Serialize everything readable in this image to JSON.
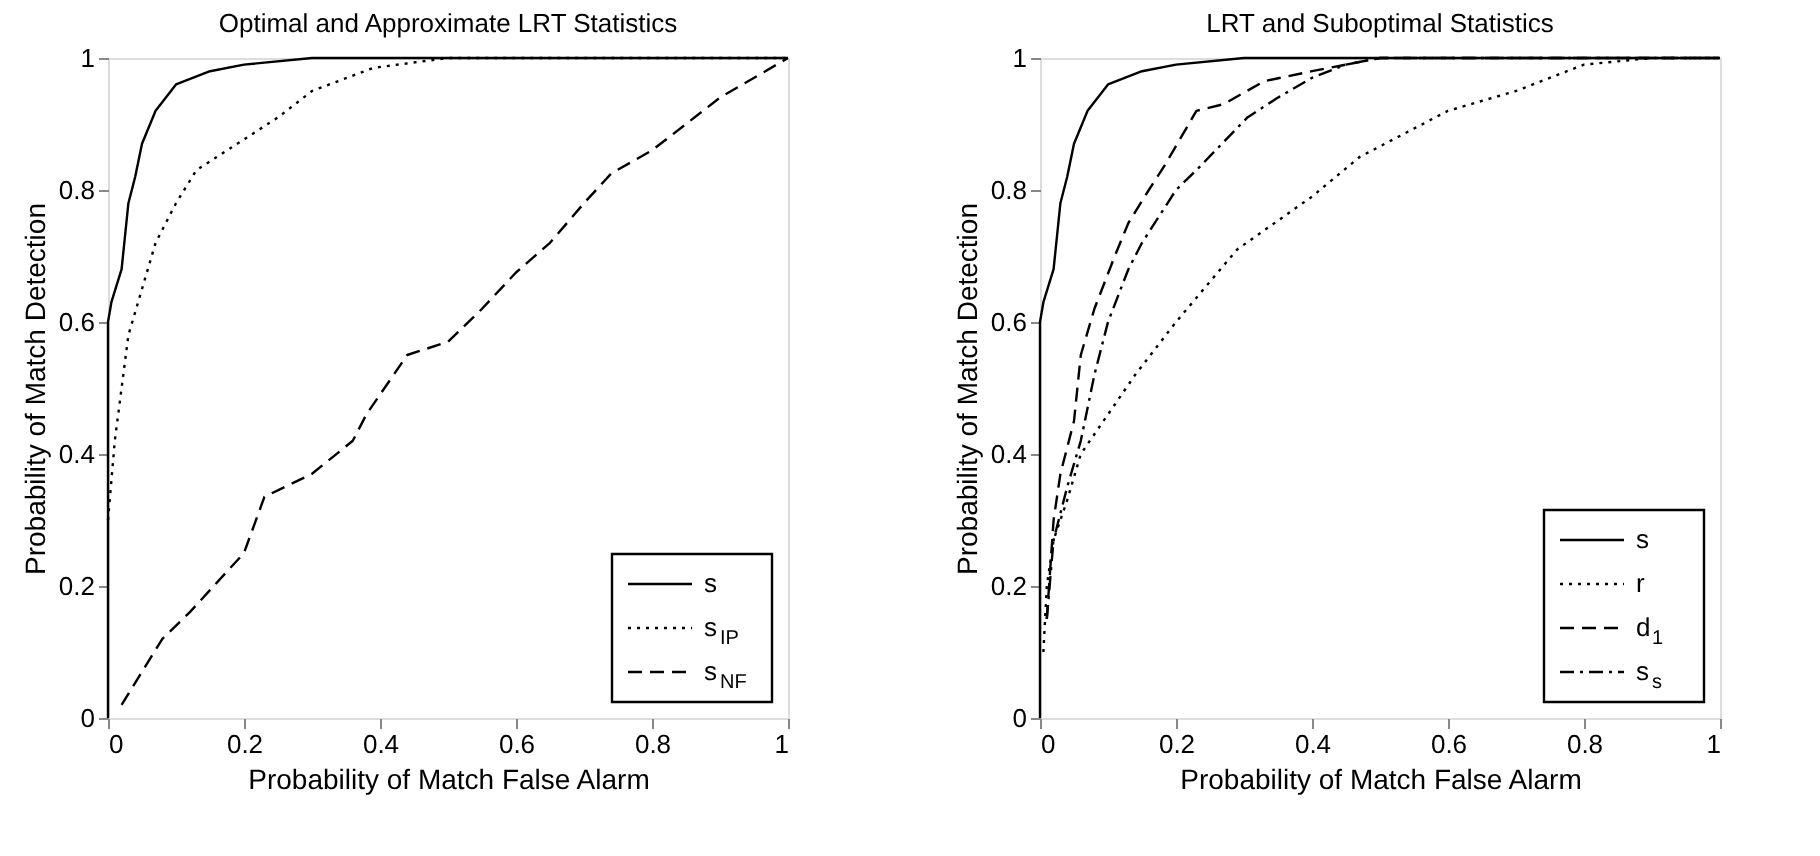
{
  "chart_data": [
    {
      "type": "line",
      "title": "Optimal and Approximate LRT Statistics",
      "xlabel": "Probability of Match False Alarm",
      "ylabel": "Probability of Match Detection",
      "xlim": [
        0,
        1
      ],
      "ylim": [
        0,
        1
      ],
      "xticks": [
        0,
        0.2,
        0.4,
        0.6,
        0.8,
        1
      ],
      "yticks": [
        0,
        0.2,
        0.4,
        0.6,
        0.8,
        1
      ],
      "grid": false,
      "legend": "bottom right",
      "marker": "none",
      "series": [
        {
          "name": "s",
          "color": "#000000",
          "line_style": "solid",
          "x": [
            0,
            0,
            0.005,
            0.02,
            0.03,
            0.04,
            0.05,
            0.07,
            0.1,
            0.15,
            0.2,
            0.3,
            1
          ],
          "values": [
            0,
            0.6,
            0.63,
            0.68,
            0.78,
            0.82,
            0.87,
            0.92,
            0.96,
            0.98,
            0.99,
            1,
            1
          ]
        },
        {
          "name": "s$_{IP}$",
          "color": "#000000",
          "line_style": "dotted",
          "x": [
            0,
            0.01,
            0.02,
            0.03,
            0.05,
            0.07,
            0.1,
            0.13,
            0.19,
            0.25,
            0.3,
            0.39,
            0.5,
            1
          ],
          "values": [
            0.3,
            0.42,
            0.5,
            0.58,
            0.65,
            0.72,
            0.78,
            0.83,
            0.87,
            0.91,
            0.95,
            0.985,
            1,
            1
          ]
        },
        {
          "name": "s$_{NF}$",
          "color": "#000000",
          "line_style": "dashed",
          "x": [
            0.02,
            0.05,
            0.08,
            0.12,
            0.2,
            0.23,
            0.3,
            0.36,
            0.38,
            0.44,
            0.5,
            0.55,
            0.6,
            0.65,
            0.7,
            0.74,
            0.8,
            0.85,
            0.9,
            1
          ],
          "values": [
            0.02,
            0.07,
            0.12,
            0.16,
            0.25,
            0.335,
            0.37,
            0.42,
            0.46,
            0.55,
            0.57,
            0.62,
            0.675,
            0.72,
            0.78,
            0.825,
            0.86,
            0.9,
            0.94,
            1
          ]
        }
      ]
    },
    {
      "type": "line",
      "title": "LRT and Suboptimal Statistics",
      "xlabel": "Probability of Match False Alarm",
      "ylabel": "Probability of Match Detection",
      "xlim": [
        0,
        1
      ],
      "ylim": [
        0,
        1
      ],
      "xticks": [
        0,
        0.2,
        0.4,
        0.6,
        0.8,
        1
      ],
      "yticks": [
        0,
        0.2,
        0.4,
        0.6,
        0.8,
        1
      ],
      "grid": false,
      "legend": "bottom right",
      "marker": "none",
      "series": [
        {
          "name": "s",
          "color": "#000000",
          "line_style": "solid",
          "x": [
            0,
            0,
            0.005,
            0.02,
            0.03,
            0.04,
            0.05,
            0.07,
            0.1,
            0.15,
            0.2,
            0.3,
            1
          ],
          "values": [
            0,
            0.6,
            0.63,
            0.68,
            0.78,
            0.82,
            0.87,
            0.92,
            0.96,
            0.98,
            0.99,
            1,
            1
          ]
        },
        {
          "name": "r",
          "color": "#000000",
          "line_style": "dotted",
          "x": [
            0.005,
            0.01,
            0.02,
            0.04,
            0.06,
            0.1,
            0.14,
            0.2,
            0.29,
            0.4,
            0.47,
            0.6,
            0.7,
            0.8,
            0.9,
            1
          ],
          "values": [
            0.1,
            0.2,
            0.27,
            0.33,
            0.4,
            0.46,
            0.52,
            0.6,
            0.71,
            0.79,
            0.85,
            0.92,
            0.95,
            0.99,
            1,
            1
          ]
        },
        {
          "name": "d$_{1}$",
          "color": "#000000",
          "line_style": "dashed",
          "x": [
            0.01,
            0.02,
            0.03,
            0.05,
            0.06,
            0.08,
            0.11,
            0.13,
            0.16,
            0.185,
            0.23,
            0.27,
            0.33,
            0.4,
            0.45,
            0.5,
            1
          ],
          "values": [
            0.15,
            0.3,
            0.37,
            0.45,
            0.55,
            0.62,
            0.7,
            0.75,
            0.8,
            0.84,
            0.92,
            0.93,
            0.965,
            0.98,
            0.99,
            1,
            1
          ]
        },
        {
          "name": "s$_{s}$",
          "color": "#000000",
          "line_style": "dashdot",
          "x": [
            0.01,
            0.02,
            0.04,
            0.06,
            0.08,
            0.1,
            0.13,
            0.15,
            0.2,
            0.23,
            0.305,
            0.35,
            0.4,
            0.45,
            0.5,
            1
          ],
          "values": [
            0.15,
            0.27,
            0.35,
            0.42,
            0.52,
            0.6,
            0.68,
            0.72,
            0.8,
            0.83,
            0.91,
            0.94,
            0.97,
            0.99,
            1,
            1
          ]
        }
      ]
    }
  ]
}
